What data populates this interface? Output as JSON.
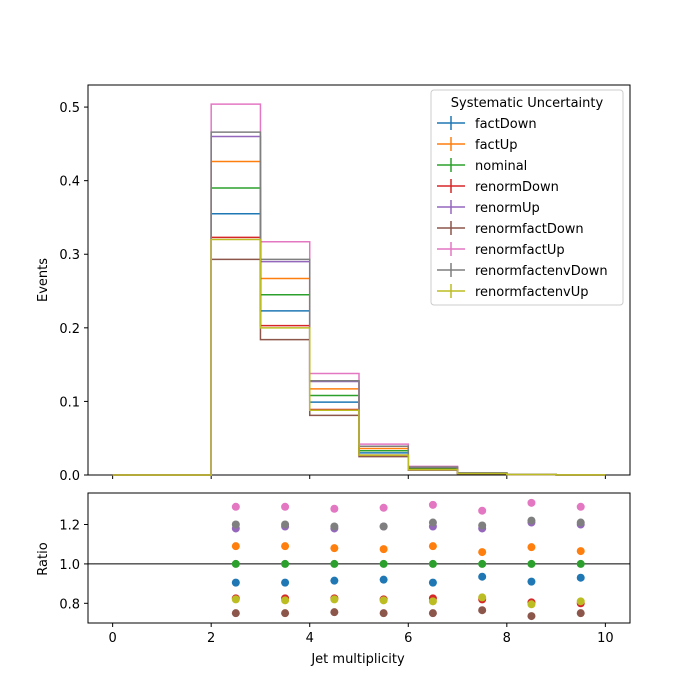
{
  "chart_data": {
    "type": "step-histogram-with-ratio",
    "legend": {
      "title": "Systematic Uncertainty",
      "placement": "top-right"
    },
    "main": {
      "ylabel": "Events",
      "ylim": [
        0,
        0.53
      ],
      "yticks": [
        "0.0",
        "0.1",
        "0.2",
        "0.3",
        "0.4",
        "0.5"
      ],
      "bin_edges": [
        0,
        1,
        2,
        3,
        4,
        5,
        6,
        7,
        8,
        9,
        10
      ],
      "series": [
        {
          "name": "factDown",
          "color": "#1f77b4",
          "values": [
            0,
            0,
            0.355,
            0.223,
            0.099,
            0.03,
            0.0082,
            0.0023,
            0.0006,
            0.0002
          ]
        },
        {
          "name": "factUp",
          "color": "#ff7f0e",
          "values": [
            0,
            0,
            0.426,
            0.267,
            0.117,
            0.036,
            0.0098,
            0.0026,
            0.0007,
            0.0002
          ]
        },
        {
          "name": "nominal",
          "color": "#2ca02c",
          "values": [
            0,
            0,
            0.39,
            0.245,
            0.108,
            0.033,
            0.009,
            0.0025,
            0.0007,
            0.0002
          ]
        },
        {
          "name": "renormDown",
          "color": "#d62728",
          "values": [
            0,
            0,
            0.323,
            0.203,
            0.089,
            0.027,
            0.0074,
            0.002,
            0.0006,
            0.0002
          ]
        },
        {
          "name": "renormUp",
          "color": "#9467bd",
          "values": [
            0,
            0,
            0.46,
            0.29,
            0.127,
            0.039,
            0.0107,
            0.0029,
            0.0008,
            0.0002
          ]
        },
        {
          "name": "renormfactDown",
          "color": "#8c564b",
          "values": [
            0,
            0,
            0.293,
            0.184,
            0.081,
            0.025,
            0.0067,
            0.0019,
            0.0005,
            0.0002
          ]
        },
        {
          "name": "renormfactUp",
          "color": "#e377c2",
          "values": [
            0,
            0,
            0.504,
            0.317,
            0.138,
            0.042,
            0.0117,
            0.0031,
            0.0009,
            0.0003
          ]
        },
        {
          "name": "renormfactenvDown",
          "color": "#7f7f7f",
          "values": [
            0,
            0,
            0.466,
            0.293,
            0.128,
            0.039,
            0.0108,
            0.003,
            0.0008,
            0.0002
          ]
        },
        {
          "name": "renormfactenvUp",
          "color": "#bcbd22",
          "values": [
            0,
            0,
            0.32,
            0.2,
            0.088,
            0.027,
            0.0073,
            0.002,
            0.0006,
            0.0002
          ]
        }
      ]
    },
    "ratio": {
      "ylabel": "Ratio",
      "xlabel": "Jet multiplicity",
      "ylim": [
        0.7,
        1.36
      ],
      "yticks": [
        "0.8",
        "1.0",
        "1.2"
      ],
      "xlim": [
        -0.5,
        10.5
      ],
      "xticks": [
        "0",
        "2",
        "4",
        "6",
        "8",
        "10"
      ],
      "reference_line": 1.0,
      "x": [
        2.5,
        3.5,
        4.5,
        5.5,
        6.5,
        7.5,
        8.5,
        9.5
      ],
      "series": [
        {
          "name": "factDown",
          "values": [
            0.905,
            0.905,
            0.915,
            0.92,
            0.905,
            0.935,
            0.91,
            0.93
          ]
        },
        {
          "name": "factUp",
          "values": [
            1.09,
            1.09,
            1.08,
            1.075,
            1.09,
            1.06,
            1.085,
            1.065
          ]
        },
        {
          "name": "nominal",
          "values": [
            1.0,
            1.0,
            1.0,
            1.0,
            1.0,
            1.0,
            1.0,
            1.0
          ]
        },
        {
          "name": "renormDown",
          "values": [
            0.825,
            0.825,
            0.825,
            0.82,
            0.825,
            0.82,
            0.805,
            0.8
          ]
        },
        {
          "name": "renormUp",
          "values": [
            1.18,
            1.19,
            1.18,
            1.19,
            1.19,
            1.18,
            1.21,
            1.2
          ]
        },
        {
          "name": "renormfactDown",
          "values": [
            0.75,
            0.75,
            0.755,
            0.75,
            0.75,
            0.765,
            0.735,
            0.75
          ]
        },
        {
          "name": "renormfactUp",
          "values": [
            1.29,
            1.29,
            1.28,
            1.285,
            1.3,
            1.27,
            1.31,
            1.29
          ]
        },
        {
          "name": "renormfactenvDown",
          "values": [
            1.2,
            1.2,
            1.19,
            1.19,
            1.21,
            1.195,
            1.22,
            1.21
          ]
        },
        {
          "name": "renormfactenvUp",
          "values": [
            0.82,
            0.815,
            0.82,
            0.815,
            0.81,
            0.83,
            0.795,
            0.81
          ]
        }
      ]
    }
  }
}
